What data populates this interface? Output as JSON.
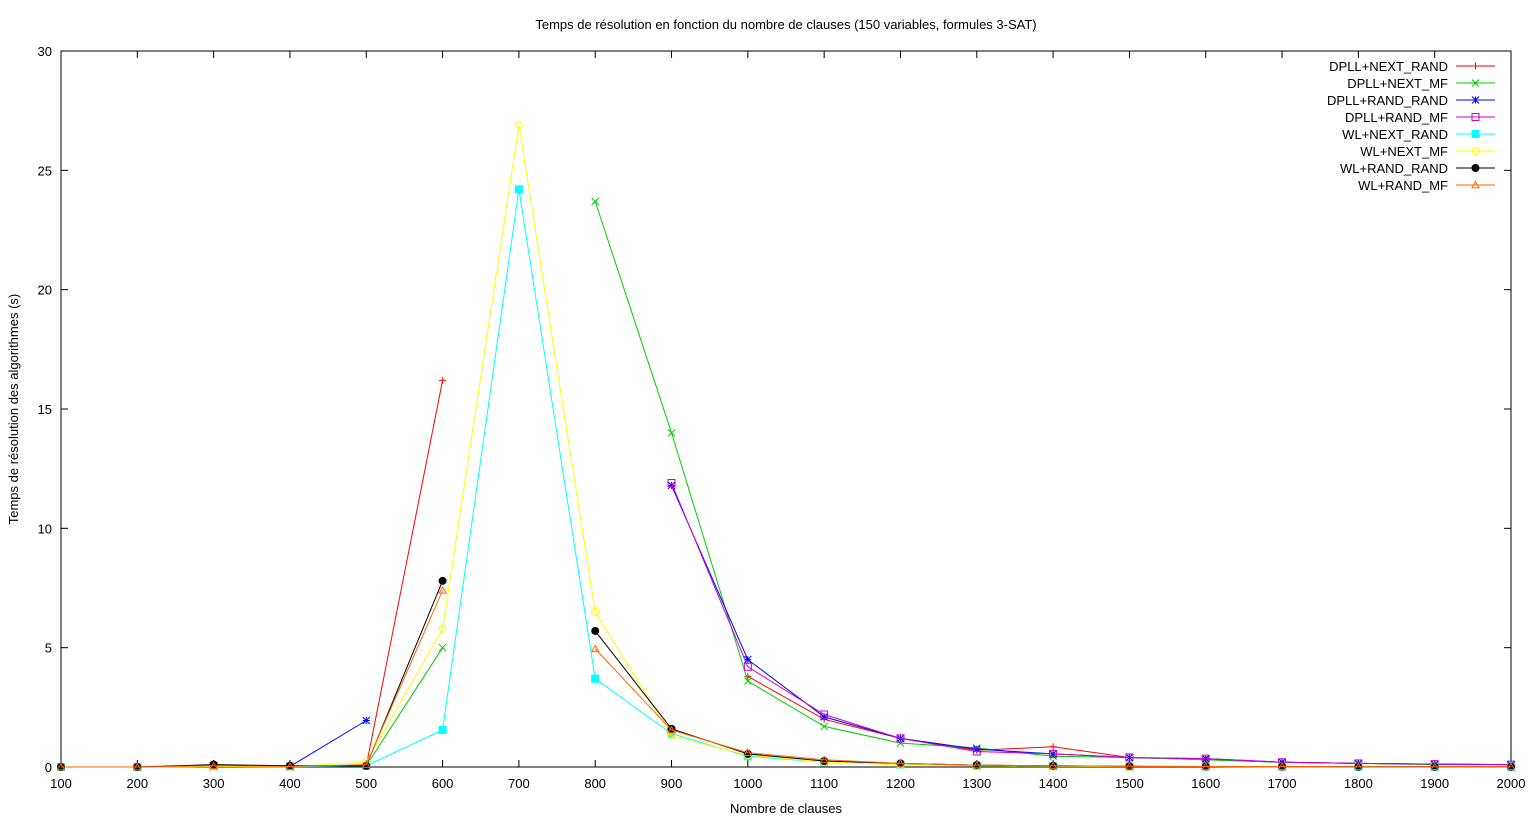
{
  "chart_data": {
    "type": "line",
    "title": "Temps de résolution en fonction du nombre de clauses (150 variables, formules 3-SAT)",
    "xlabel": "Nombre de clauses",
    "ylabel": "Temps de résolution des algorithmes (s)",
    "xlim": [
      100,
      2000
    ],
    "ylim": [
      0,
      30
    ],
    "xticks": [
      "100",
      "200",
      "300",
      "400",
      "500",
      "600",
      "700",
      "800",
      "900",
      "1000",
      "1100",
      "1200",
      "1300",
      "1400",
      "1500",
      "1600",
      "1700",
      "1800",
      "1900",
      "2000"
    ],
    "yticks": [
      "0",
      "5",
      "10",
      "15",
      "20",
      "25",
      "30"
    ],
    "grid": false,
    "legend_position": "top-right",
    "series": [
      {
        "name": "DPLL+NEXT_RAND",
        "color": "#ff0000",
        "marker": "plus",
        "points": [
          [
            100,
            0
          ],
          [
            200,
            0
          ],
          [
            300,
            0.05
          ],
          [
            400,
            0.02
          ],
          [
            500,
            0.05
          ],
          [
            600,
            16.2
          ]
        ],
        "points2": [
          [
            1000,
            3.8
          ],
          [
            1100,
            2.0
          ],
          [
            1200,
            1.2
          ],
          [
            1300,
            0.7
          ],
          [
            1400,
            0.85
          ],
          [
            1500,
            0.4
          ],
          [
            1600,
            0.3
          ],
          [
            1700,
            0.2
          ],
          [
            1800,
            0.15
          ],
          [
            1900,
            0.12
          ],
          [
            2000,
            0.1
          ]
        ]
      },
      {
        "name": "DPLL+NEXT_MF",
        "color": "#00cc00",
        "marker": "x",
        "points": [
          [
            100,
            0
          ],
          [
            200,
            0
          ],
          [
            300,
            0.05
          ],
          [
            400,
            0.02
          ],
          [
            500,
            0.05
          ],
          [
            600,
            5.0
          ]
        ],
        "points2": [
          [
            800,
            23.7
          ],
          [
            900,
            14.0
          ],
          [
            1000,
            3.6
          ],
          [
            1100,
            1.7
          ],
          [
            1200,
            1.0
          ],
          [
            1300,
            0.8
          ],
          [
            1400,
            0.45
          ],
          [
            1500,
            0.4
          ],
          [
            1600,
            0.3
          ],
          [
            1700,
            0.2
          ],
          [
            1800,
            0.15
          ],
          [
            1900,
            0.1
          ],
          [
            2000,
            0.1
          ]
        ]
      },
      {
        "name": "DPLL+RAND_RAND",
        "color": "#0000ff",
        "marker": "star",
        "points": [
          [
            100,
            0
          ],
          [
            200,
            0
          ],
          [
            300,
            0.05
          ],
          [
            400,
            0.02
          ],
          [
            500,
            1.95
          ]
        ],
        "points2": [
          [
            900,
            11.8
          ],
          [
            1000,
            4.5
          ],
          [
            1100,
            2.1
          ],
          [
            1200,
            1.2
          ],
          [
            1300,
            0.75
          ],
          [
            1400,
            0.55
          ],
          [
            1500,
            0.4
          ],
          [
            1600,
            0.35
          ],
          [
            1700,
            0.2
          ],
          [
            1800,
            0.15
          ],
          [
            1900,
            0.12
          ],
          [
            2000,
            0.1
          ]
        ]
      },
      {
        "name": "DPLL+RAND_MF",
        "color": "#cc00cc",
        "marker": "square-open",
        "points": [
          [
            100,
            0
          ],
          [
            200,
            0
          ],
          [
            300,
            0.05
          ],
          [
            400,
            0.02
          ],
          [
            500,
            0.05
          ]
        ],
        "points2": [
          [
            900,
            11.9
          ],
          [
            1000,
            4.2
          ],
          [
            1100,
            2.2
          ],
          [
            1200,
            1.2
          ],
          [
            1300,
            0.65
          ],
          [
            1400,
            0.55
          ],
          [
            1500,
            0.4
          ],
          [
            1600,
            0.35
          ],
          [
            1700,
            0.2
          ],
          [
            1800,
            0.15
          ],
          [
            1900,
            0.12
          ],
          [
            2000,
            0.1
          ]
        ]
      },
      {
        "name": "WL+NEXT_RAND",
        "color": "#00ffff",
        "marker": "square-filled",
        "points": [
          [
            100,
            0
          ],
          [
            200,
            0
          ],
          [
            300,
            0.02
          ],
          [
            400,
            0.01
          ],
          [
            500,
            0.05
          ],
          [
            600,
            1.55
          ],
          [
            700,
            24.2
          ],
          [
            800,
            3.7
          ],
          [
            900,
            1.4
          ],
          [
            1000,
            0.45
          ],
          [
            1100,
            0.2
          ],
          [
            1200,
            0.1
          ],
          [
            1300,
            0.05
          ],
          [
            1400,
            0.03
          ],
          [
            1500,
            0.02
          ],
          [
            1600,
            0.02
          ],
          [
            1700,
            0.01
          ],
          [
            1800,
            0.01
          ],
          [
            1900,
            0.01
          ],
          [
            2000,
            0.01
          ]
        ]
      },
      {
        "name": "WL+NEXT_MF",
        "color": "#ffff00",
        "marker": "circle-open",
        "points": [
          [
            100,
            0
          ],
          [
            200,
            0
          ],
          [
            300,
            0.02
          ],
          [
            400,
            0.01
          ],
          [
            500,
            0.2
          ],
          [
            600,
            5.8
          ],
          [
            700,
            26.9
          ],
          [
            800,
            6.5
          ],
          [
            900,
            1.3
          ],
          [
            1000,
            0.5
          ],
          [
            1100,
            0.2
          ],
          [
            1200,
            0.1
          ],
          [
            1300,
            0.05
          ],
          [
            1400,
            0.03
          ],
          [
            1500,
            0.02
          ],
          [
            1600,
            0.02
          ],
          [
            1700,
            0.01
          ],
          [
            1800,
            0.01
          ],
          [
            1900,
            0.01
          ],
          [
            2000,
            0.01
          ]
        ]
      },
      {
        "name": "WL+RAND_RAND",
        "color": "#000000",
        "marker": "circle-filled",
        "points": [
          [
            100,
            0
          ],
          [
            200,
            0
          ],
          [
            300,
            0.1
          ],
          [
            400,
            0.05
          ],
          [
            500,
            0.05
          ],
          [
            600,
            7.8
          ]
        ],
        "points2": [
          [
            800,
            5.7
          ],
          [
            900,
            1.6
          ],
          [
            1000,
            0.55
          ],
          [
            1100,
            0.25
          ],
          [
            1200,
            0.15
          ],
          [
            1300,
            0.08
          ],
          [
            1400,
            0.05
          ],
          [
            1500,
            0.03
          ],
          [
            1600,
            0.02
          ],
          [
            1700,
            0.02
          ],
          [
            1800,
            0.01
          ],
          [
            1900,
            0.01
          ],
          [
            2000,
            0.01
          ]
        ]
      },
      {
        "name": "WL+RAND_MF",
        "color": "#ff6600",
        "marker": "triangle-open",
        "points": [
          [
            100,
            0
          ],
          [
            200,
            0
          ],
          [
            300,
            0.05
          ],
          [
            400,
            0.02
          ],
          [
            500,
            0.1
          ],
          [
            600,
            7.4
          ]
        ],
        "points2": [
          [
            800,
            4.95
          ],
          [
            900,
            1.55
          ],
          [
            1000,
            0.6
          ],
          [
            1100,
            0.3
          ],
          [
            1200,
            0.15
          ],
          [
            1300,
            0.08
          ],
          [
            1400,
            0.05
          ],
          [
            1500,
            0.03
          ],
          [
            1600,
            0.02
          ],
          [
            1700,
            0.02
          ],
          [
            1800,
            0.01
          ],
          [
            1900,
            0.01
          ],
          [
            2000,
            0.01
          ]
        ]
      }
    ]
  }
}
